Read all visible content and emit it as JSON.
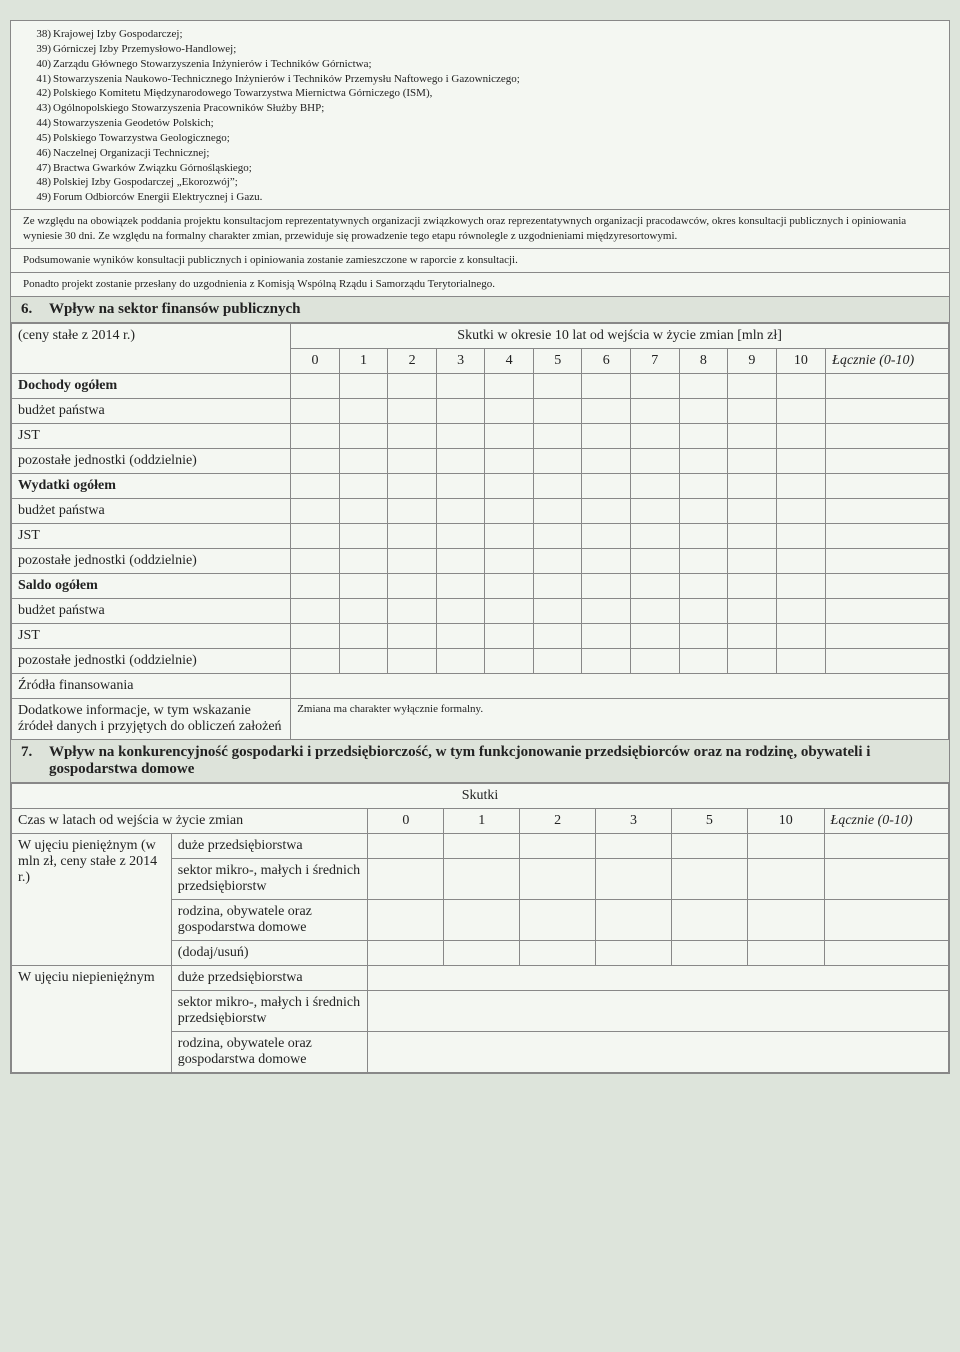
{
  "list_items": [
    {
      "n": "38)",
      "t": "Krajowej Izby Gospodarczej;"
    },
    {
      "n": "39)",
      "t": "Górniczej Izby Przemysłowo-Handlowej;"
    },
    {
      "n": "40)",
      "t": "Zarządu Głównego Stowarzyszenia Inżynierów i Techników Górnictwa;"
    },
    {
      "n": "41)",
      "t": "Stowarzyszenia Naukowo-Technicznego Inżynierów i Techników Przemysłu Naftowego i Gazowniczego;"
    },
    {
      "n": "42)",
      "t": "Polskiego Komitetu Międzynarodowego Towarzystwa Miernictwa Górniczego (ISM),"
    },
    {
      "n": "43)",
      "t": "Ogólnopolskiego Stowarzyszenia Pracowników Służby BHP;"
    },
    {
      "n": "44)",
      "t": "Stowarzyszenia Geodetów Polskich;"
    },
    {
      "n": "45)",
      "t": "Polskiego Towarzystwa Geologicznego;"
    },
    {
      "n": "46)",
      "t": "Naczelnej Organizacji Technicznej;"
    },
    {
      "n": "47)",
      "t": "Bractwa Gwarków Związku Górnośląskiego;"
    },
    {
      "n": "48)",
      "t": "Polskiej Izby Gospodarczej „Ekorozwój”;"
    },
    {
      "n": "49)",
      "t": "Forum Odbiorców Energii Elektrycznej i Gazu."
    }
  ],
  "para1": "Ze względu na obowiązek poddania projektu konsultacjom reprezentatywnych organizacji związkowych oraz reprezentatywnych organizacji pracodawców, okres konsultacji publicznych i opiniowania wyniesie 30 dni. Ze względu na formalny charakter zmian, przewiduje się prowadzenie tego etapu równolegle z uzgodnieniami międzyresortowymi.",
  "para2": "Podsumowanie wyników konsultacji publicznych i opiniowania zostanie zamieszczone w raporcie z konsultacji.",
  "para3": "Ponadto projekt zostanie przesłany do uzgodnienia z Komisją Wspólną Rządu i Samorządu Terytorialnego.",
  "s6": {
    "num": "6.",
    "title": "Wpływ na sektor finansów publicznych",
    "topleft": "(ceny stałe z 2014 r.)",
    "banner": "Skutki w okresie 10 lat od wejścia w życie zmian [mln zł]",
    "years": [
      "0",
      "1",
      "2",
      "3",
      "4",
      "5",
      "6",
      "7",
      "8",
      "9",
      "10"
    ],
    "lacznie": "Łącznie (0-10)",
    "rows": [
      {
        "label": "Dochody ogółem",
        "bold": true
      },
      {
        "label": "budżet państwa"
      },
      {
        "label": "JST"
      },
      {
        "label": "pozostałe jednostki (oddzielnie)"
      },
      {
        "label": "Wydatki ogółem",
        "bold": true
      },
      {
        "label": "budżet państwa"
      },
      {
        "label": "JST"
      },
      {
        "label": "pozostałe jednostki (oddzielnie)"
      },
      {
        "label": "Saldo ogółem",
        "bold": true
      },
      {
        "label": "budżet państwa"
      },
      {
        "label": "JST"
      },
      {
        "label": "pozostałe jednostki (oddzielnie)"
      }
    ],
    "zrodla": "Źródła finansowania",
    "dodatkowe": "Dodatkowe informacje, w tym wskazanie źródeł danych i przyjętych do obliczeń założeń",
    "zmiana": "Zmiana ma charakter wyłącznie formalny."
  },
  "s7": {
    "num": "7.",
    "title": "Wpływ na konkurencyjność gospodarki i przedsiębiorczość, w tym funkcjonowanie przedsiębiorców oraz na rodzinę, obywateli i gospodarstwa domowe",
    "skutki": "Skutki",
    "czas": "Czas w latach od wejścia w życie zmian",
    "years": [
      "0",
      "1",
      "2",
      "3",
      "5",
      "10"
    ],
    "lacznie": "Łącznie (0-10)",
    "rowA": "W ujęciu pieniężnym (w mln zł, ceny stałe z 2014 r.)",
    "rowB": "W ujęciu niepieniężnym",
    "sub1": "duże przedsiębiorstwa",
    "sub2": "sektor mikro-, małych i średnich przedsiębiorstw",
    "sub3": "rodzina, obywatele oraz gospodarstwa domowe",
    "sub4": "(dodaj/usuń)"
  }
}
